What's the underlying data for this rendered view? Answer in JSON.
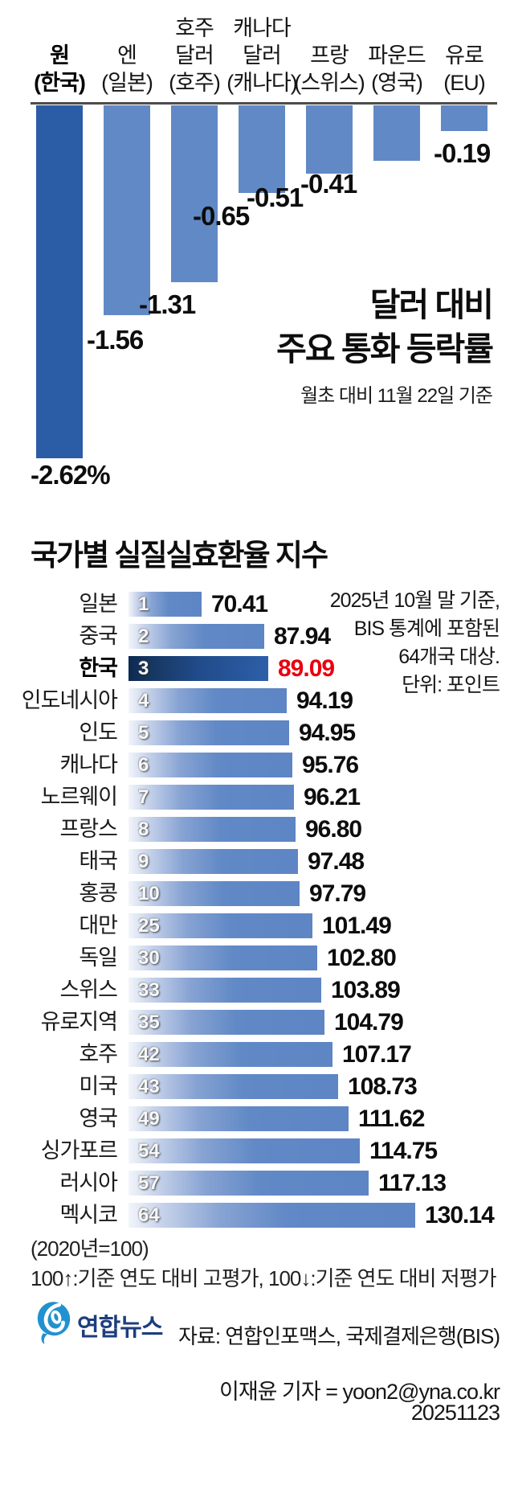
{
  "top_chart": {
    "title_line1": "달러 대비",
    "title_line2": "주요 통화 등락률",
    "subtitle": "월초 대비 11월 22일 기준",
    "bars": [
      {
        "label_lines": [
          "원",
          "(한국)"
        ],
        "country": "한국",
        "currency": "원",
        "value": -2.62,
        "value_label": "-2.62%",
        "highlight": true
      },
      {
        "label_lines": [
          "엔",
          "(일본)"
        ],
        "country": "일본",
        "currency": "엔",
        "value": -1.56,
        "value_label": "-1.56",
        "highlight": false
      },
      {
        "label_lines": [
          "호주",
          "달러",
          "(호주)"
        ],
        "country": "호주",
        "currency": "호주달러",
        "value": -1.31,
        "value_label": "-1.31",
        "highlight": false
      },
      {
        "label_lines": [
          "캐나다",
          "달러",
          "(캐나다)"
        ],
        "country": "캐나다",
        "currency": "캐나다달러",
        "value": -0.65,
        "value_label": "-0.65",
        "highlight": false
      },
      {
        "label_lines": [
          "프랑",
          "(스위스)"
        ],
        "country": "스위스",
        "currency": "프랑",
        "value": -0.51,
        "value_label": "-0.51",
        "highlight": false
      },
      {
        "label_lines": [
          "파운드",
          "(영국)"
        ],
        "country": "영국",
        "currency": "파운드",
        "value": -0.41,
        "value_label": "-0.41",
        "highlight": false
      },
      {
        "label_lines": [
          "유로",
          "(EU)"
        ],
        "country": "EU",
        "currency": "유로",
        "value": -0.19,
        "value_label": "-0.19",
        "highlight": false
      }
    ]
  },
  "index_chart": {
    "title": "국가별 실질실효환율 지수",
    "note_lines": [
      "2025년 10월 말 기준,",
      "BIS 통계에 포함된",
      "64개국 대상.",
      "단위: 포인트"
    ],
    "rows": [
      {
        "country": "일본",
        "rank": "1",
        "value": 70.41,
        "value_label": "70.41",
        "highlight": false
      },
      {
        "country": "중국",
        "rank": "2",
        "value": 87.94,
        "value_label": "87.94",
        "highlight": false
      },
      {
        "country": "한국",
        "rank": "3",
        "value": 89.09,
        "value_label": "89.09",
        "highlight": true
      },
      {
        "country": "인도네시아",
        "rank": "4",
        "value": 94.19,
        "value_label": "94.19",
        "highlight": false
      },
      {
        "country": "인도",
        "rank": "5",
        "value": 94.95,
        "value_label": "94.95",
        "highlight": false
      },
      {
        "country": "캐나다",
        "rank": "6",
        "value": 95.76,
        "value_label": "95.76",
        "highlight": false
      },
      {
        "country": "노르웨이",
        "rank": "7",
        "value": 96.21,
        "value_label": "96.21",
        "highlight": false
      },
      {
        "country": "프랑스",
        "rank": "8",
        "value": 96.8,
        "value_label": "96.80",
        "highlight": false
      },
      {
        "country": "태국",
        "rank": "9",
        "value": 97.48,
        "value_label": "97.48",
        "highlight": false
      },
      {
        "country": "홍콩",
        "rank": "10",
        "value": 97.79,
        "value_label": "97.79",
        "highlight": false
      },
      {
        "country": "대만",
        "rank": "25",
        "value": 101.49,
        "value_label": "101.49",
        "highlight": false
      },
      {
        "country": "독일",
        "rank": "30",
        "value": 102.8,
        "value_label": "102.80",
        "highlight": false
      },
      {
        "country": "스위스",
        "rank": "33",
        "value": 103.89,
        "value_label": "103.89",
        "highlight": false
      },
      {
        "country": "유로지역",
        "rank": "35",
        "value": 104.79,
        "value_label": "104.79",
        "highlight": false
      },
      {
        "country": "호주",
        "rank": "42",
        "value": 107.17,
        "value_label": "107.17",
        "highlight": false
      },
      {
        "country": "미국",
        "rank": "43",
        "value": 108.73,
        "value_label": "108.73",
        "highlight": false
      },
      {
        "country": "영국",
        "rank": "49",
        "value": 111.62,
        "value_label": "111.62",
        "highlight": false
      },
      {
        "country": "싱가포르",
        "rank": "54",
        "value": 114.75,
        "value_label": "114.75",
        "highlight": false
      },
      {
        "country": "러시아",
        "rank": "57",
        "value": 117.13,
        "value_label": "117.13",
        "highlight": false
      },
      {
        "country": "멕시코",
        "rank": "64",
        "value": 130.14,
        "value_label": "130.14",
        "highlight": false
      }
    ],
    "footnote1": "(2020년=100)",
    "footnote2": "100↑:기준 연도 대비 고평가, 100↓:기준 연도 대비 저평가"
  },
  "footer": {
    "logo_text": "연합뉴스",
    "source": "자료: 연합인포맥스, 국제결제은행(BIS)",
    "credit": "이재윤 기자 = yoon2@yna.co.kr",
    "date": "20251123"
  },
  "colors": {
    "bar_light": "#6189c6",
    "bar_dark": "#2b5ca6",
    "highlight_value_red": "#e8000e",
    "logo_blue": "#2191cf",
    "logo_navy": "#1d3e7d",
    "baseline_gray": "#4d4d4d"
  },
  "chart_data": [
    {
      "type": "bar",
      "orientation": "vertical",
      "title": "달러 대비 주요 통화 등락률",
      "subtitle": "월초 대비 11월 22일 기준",
      "unit": "%",
      "categories": [
        "원(한국)",
        "엔(일본)",
        "호주달러(호주)",
        "캐나다달러(캐나다)",
        "프랑(스위스)",
        "파운드(영국)",
        "유로(EU)"
      ],
      "values": [
        -2.62,
        -1.56,
        -1.31,
        -0.65,
        -0.51,
        -0.41,
        -0.19
      ],
      "ylim": [
        -2.8,
        0
      ],
      "grid": false,
      "highlight_category": "원(한국)"
    },
    {
      "type": "bar",
      "orientation": "horizontal",
      "title": "국가별 실질실효환율 지수",
      "note": "2025년 10월 말 기준, BIS 통계에 포함된 64개국 대상. 단위: 포인트",
      "baseline_note": "(2020년=100)",
      "legend_note": "100↑:기준 연도 대비 고평가, 100↓:기준 연도 대비 저평가",
      "categories": [
        "일본",
        "중국",
        "한국",
        "인도네시아",
        "인도",
        "캐나다",
        "노르웨이",
        "프랑스",
        "태국",
        "홍콩",
        "대만",
        "독일",
        "스위스",
        "유로지역",
        "호주",
        "미국",
        "영국",
        "싱가포르",
        "러시아",
        "멕시코"
      ],
      "ranks": [
        1,
        2,
        3,
        4,
        5,
        6,
        7,
        8,
        9,
        10,
        25,
        30,
        33,
        35,
        42,
        43,
        49,
        54,
        57,
        64
      ],
      "values": [
        70.41,
        87.94,
        89.09,
        94.19,
        94.95,
        95.76,
        96.21,
        96.8,
        97.48,
        97.79,
        101.49,
        102.8,
        103.89,
        104.79,
        107.17,
        108.73,
        111.62,
        114.75,
        117.13,
        130.14
      ],
      "highlight_category": "한국",
      "grid": false
    }
  ]
}
